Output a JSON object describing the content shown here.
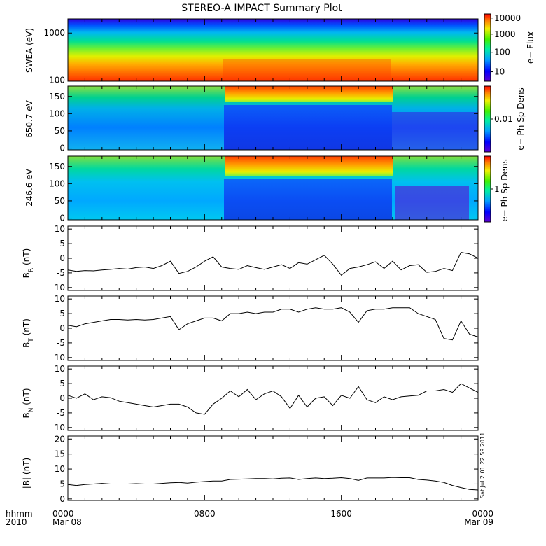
{
  "title": "STEREO-A IMPACT Summary Plot",
  "footer": {
    "left_top": "hhmm",
    "left_bottom": "2010",
    "time_ticks": [
      "0000",
      "0800",
      "1600",
      "0000"
    ],
    "date_ticks": [
      "Mar 08",
      "",
      "",
      "Mar 09"
    ],
    "stamp": "Sat Jul  2 01:22:59 2011"
  },
  "chart_data": [
    {
      "type": "heatmap",
      "ylabel": "SWEA (eV)",
      "yscale": "log",
      "ylim": [
        95,
        2000
      ],
      "yticks": [
        "1000",
        "100"
      ],
      "colorbar_label": "e− Flux",
      "colorbar_ticks": [
        "10000",
        "1000",
        "100",
        "10"
      ],
      "xlim_hours": [
        0,
        24
      ]
    },
    {
      "type": "heatmap",
      "ylabel": "650.7 eV",
      "ylim": [
        -5,
        180
      ],
      "yticks": [
        "150",
        "100",
        "50",
        "0"
      ],
      "colorbar_label": "e− Ph Sp Dens",
      "colorbar_ticks": [
        "0.01"
      ],
      "xlim_hours": [
        0,
        24
      ]
    },
    {
      "type": "heatmap",
      "ylabel": "246.6 eV",
      "ylim": [
        -5,
        180
      ],
      "yticks": [
        "150",
        "100",
        "50",
        "0"
      ],
      "colorbar_label": "e− Ph Sp Dens",
      "colorbar_ticks": [
        "1"
      ],
      "xlim_hours": [
        0,
        24
      ]
    },
    {
      "type": "line",
      "ylabel": "B_R (nT)",
      "ylim": [
        -11,
        11
      ],
      "yticks": [
        "10",
        "5",
        "0",
        "-5",
        "-10"
      ],
      "x": [
        0,
        0.5,
        1,
        1.5,
        2,
        2.5,
        3,
        3.5,
        4,
        4.5,
        5,
        5.5,
        6,
        6.5,
        7,
        7.5,
        8,
        8.5,
        9,
        9.5,
        10,
        10.5,
        11,
        11.5,
        12,
        12.5,
        13,
        13.5,
        14,
        14.5,
        15,
        15.5,
        16,
        16.5,
        17,
        17.5,
        18,
        18.5,
        19,
        19.5,
        20,
        20.5,
        21,
        21.5,
        22,
        22.5,
        23,
        23.5,
        24
      ],
      "y": [
        -4,
        -4.5,
        -4.2,
        -4.3,
        -4,
        -3.8,
        -3.5,
        -3.7,
        -3.2,
        -3,
        -3.5,
        -2.5,
        -1,
        -5.2,
        -4.5,
        -3,
        -1,
        0.5,
        -3,
        -3.5,
        -3.8,
        -2.5,
        -3.2,
        -3.8,
        -3,
        -2.2,
        -3.5,
        -1.5,
        -2,
        -0.5,
        1,
        -2,
        -5.8,
        -3.5,
        -3,
        -2.2,
        -1.2,
        -3.5,
        -1,
        -4,
        -2.5,
        -2.2,
        -4.8,
        -4.5,
        -3.5,
        -4.2,
        2,
        1.5,
        0
      ]
    },
    {
      "type": "line",
      "ylabel": "B_T (nT)",
      "ylim": [
        -11,
        11
      ],
      "yticks": [
        "10",
        "5",
        "0",
        "-5",
        "-10"
      ],
      "x": [
        0,
        0.5,
        1,
        1.5,
        2,
        2.5,
        3,
        3.5,
        4,
        4.5,
        5,
        5.5,
        6,
        6.5,
        7,
        7.5,
        8,
        8.5,
        9,
        9.5,
        10,
        10.5,
        11,
        11.5,
        12,
        12.5,
        13,
        13.5,
        14,
        14.5,
        15,
        15.5,
        16,
        16.5,
        17,
        17.5,
        18,
        18.5,
        19,
        19.5,
        20,
        20.5,
        21,
        21.5,
        22,
        22.5,
        23,
        23.5,
        24
      ],
      "y": [
        1,
        0.5,
        1.5,
        2,
        2.5,
        3,
        3,
        2.8,
        3,
        2.8,
        3,
        3.5,
        4,
        -0.5,
        1.5,
        2.5,
        3.5,
        3.5,
        2.5,
        5,
        5,
        5.5,
        5,
        5.5,
        5.5,
        6.5,
        6.5,
        5.5,
        6.5,
        7,
        6.5,
        6.5,
        7,
        5.5,
        2,
        6,
        6.5,
        6.5,
        7,
        7,
        7,
        5,
        4,
        3,
        -3.5,
        -4,
        2.5,
        -2,
        -3
      ]
    },
    {
      "type": "line",
      "ylabel": "B_N (nT)",
      "ylim": [
        -11,
        11
      ],
      "yticks": [
        "10",
        "5",
        "0",
        "-5",
        "-10"
      ],
      "x": [
        0,
        0.5,
        1,
        1.5,
        2,
        2.5,
        3,
        3.5,
        4,
        4.5,
        5,
        5.5,
        6,
        6.5,
        7,
        7.5,
        8,
        8.5,
        9,
        9.5,
        10,
        10.5,
        11,
        11.5,
        12,
        12.5,
        13,
        13.5,
        14,
        14.5,
        15,
        15.5,
        16,
        16.5,
        17,
        17.5,
        18,
        18.5,
        19,
        19.5,
        20,
        20.5,
        21,
        21.5,
        22,
        22.5,
        23,
        23.5,
        24
      ],
      "y": [
        1,
        0,
        1.5,
        -0.5,
        0.5,
        0.2,
        -1,
        -1.5,
        -2,
        -2.5,
        -3,
        -2.5,
        -2,
        -2,
        -3,
        -5,
        -5.5,
        -2,
        0,
        2.5,
        0.5,
        3,
        -0.5,
        1.5,
        2.5,
        0.5,
        -3.5,
        1,
        -3,
        0,
        0.5,
        -2.5,
        1,
        0,
        4,
        -0.5,
        -1.5,
        0.5,
        -0.5,
        0.5,
        0.8,
        1,
        2.5,
        2.5,
        3,
        2,
        5,
        3.5,
        2
      ]
    },
    {
      "type": "line",
      "ylabel": "|B| (nT)",
      "ylim": [
        -0.5,
        21
      ],
      "yticks": [
        "20",
        "15",
        "10",
        "5",
        "0"
      ],
      "x": [
        0,
        0.5,
        1,
        1.5,
        2,
        2.5,
        3,
        3.5,
        4,
        4.5,
        5,
        5.5,
        6,
        6.5,
        7,
        7.5,
        8,
        8.5,
        9,
        9.5,
        10,
        10.5,
        11,
        11.5,
        12,
        12.5,
        13,
        13.5,
        14,
        14.5,
        15,
        15.5,
        16,
        16.5,
        17,
        17.5,
        18,
        18.5,
        19,
        19.5,
        20,
        20.5,
        21,
        21.5,
        22,
        22.5,
        23,
        23.5,
        24
      ],
      "y": [
        4.8,
        4.5,
        4.8,
        5,
        5.2,
        5,
        5,
        5,
        5.1,
        5,
        5,
        5.2,
        5.4,
        5.5,
        5.3,
        5.6,
        5.8,
        6,
        6,
        6.5,
        6.6,
        6.7,
        6.8,
        6.8,
        6.7,
        6.9,
        7,
        6.5,
        6.8,
        7,
        6.8,
        6.9,
        7.1,
        6.8,
        6.2,
        7,
        7,
        7,
        7.2,
        7.1,
        7.1,
        6.5,
        6.3,
        6,
        5.5,
        4.5,
        3.8,
        3.2,
        3
      ]
    }
  ]
}
